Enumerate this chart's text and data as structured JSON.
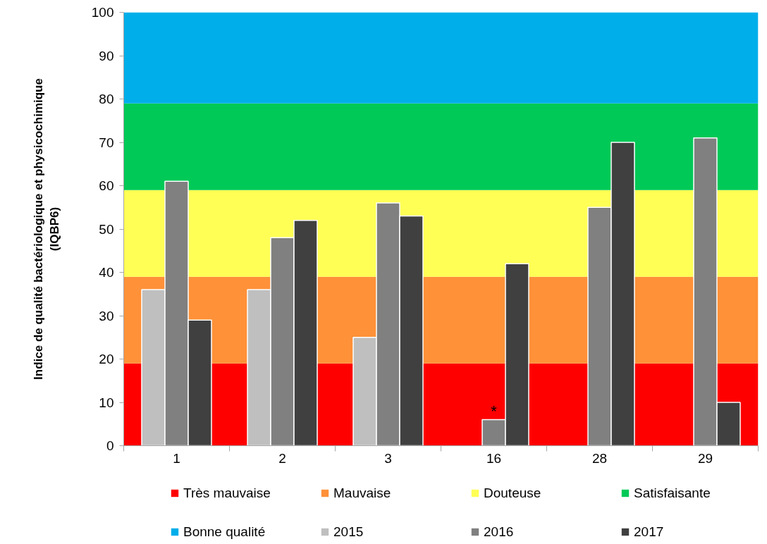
{
  "chart_data": {
    "type": "bar",
    "ylabel": "Indice de qualité bactériologique et physicochimique\n(IQBP6)",
    "categories": [
      "1",
      "2",
      "3",
      "16",
      "28",
      "29"
    ],
    "series": [
      {
        "name": "2015",
        "color": "#bfbfbf",
        "values": [
          36,
          36,
          25,
          null,
          null,
          null
        ]
      },
      {
        "name": "2016",
        "color": "#808080",
        "values": [
          61,
          48,
          56,
          6,
          55,
          71
        ]
      },
      {
        "name": "2017",
        "color": "#404040",
        "values": [
          29,
          52,
          53,
          42,
          70,
          10
        ]
      }
    ],
    "ylim": [
      0,
      100
    ],
    "yticks": [
      0,
      10,
      20,
      30,
      40,
      50,
      60,
      70,
      80,
      90,
      100
    ],
    "bands": [
      {
        "axis": "y",
        "from": 0,
        "to": 19,
        "label": "Très mauvaise",
        "color": "#ff0000"
      },
      {
        "axis": "y",
        "from": 19,
        "to": 39,
        "label": "Mauvaise",
        "color": "#ff9138"
      },
      {
        "axis": "y",
        "from": 39,
        "to": 59,
        "label": "Douteuse",
        "color": "#ffff55"
      },
      {
        "axis": "y",
        "from": 59,
        "to": 79,
        "label": "Satisfaisante",
        "color": "#00c957"
      },
      {
        "axis": "y",
        "from": 79,
        "to": 100,
        "label": "Bonne qualité",
        "color": "#00aeea"
      }
    ],
    "annotations": [
      {
        "text": "*",
        "x": "16",
        "y": 6
      }
    ],
    "legend": "bottom",
    "grid": false
  }
}
